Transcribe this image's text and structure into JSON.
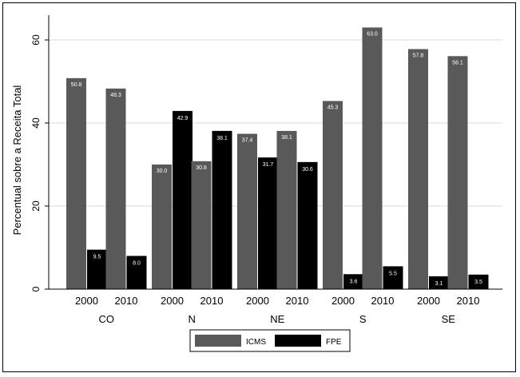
{
  "chart_data": {
    "type": "bar",
    "ylabel": "Percentual sobre a Receita Total",
    "ylim": [
      0,
      63
    ],
    "yticks": [
      "0",
      "20",
      "40",
      "60"
    ],
    "ytick_values": [
      0,
      20,
      40,
      60
    ],
    "grid": true,
    "legend_position": "bottom",
    "groups": [
      "CO",
      "N",
      "NE",
      "S",
      "SE"
    ],
    "years": [
      "2000",
      "2010"
    ],
    "categories": [
      "CO 2000",
      "CO 2010",
      "N 2000",
      "N 2010",
      "NE 2000",
      "NE 2010",
      "S 2000",
      "S 2010",
      "SE 2000",
      "SE 2010"
    ],
    "series": [
      {
        "name": "ICMS",
        "color": "#595959",
        "values": [
          50.8,
          48.3,
          30.0,
          30.8,
          37.4,
          38.1,
          45.3,
          63.0,
          57.8,
          56.1
        ],
        "labels": [
          "50.8",
          "48.3",
          "30.0",
          "30.8",
          "37.4",
          "38.1",
          "45.3",
          "63.0",
          "57.8",
          "56.1"
        ]
      },
      {
        "name": "FPE",
        "color": "#000000",
        "values": [
          9.5,
          8.0,
          42.9,
          38.1,
          31.7,
          30.6,
          3.6,
          5.5,
          3.1,
          3.5
        ],
        "labels": [
          "9.5",
          "8.0",
          "42.9",
          "38.1",
          "31.7",
          "30.6",
          "3.6",
          "5.5",
          "3.1",
          "3.5"
        ]
      }
    ]
  }
}
